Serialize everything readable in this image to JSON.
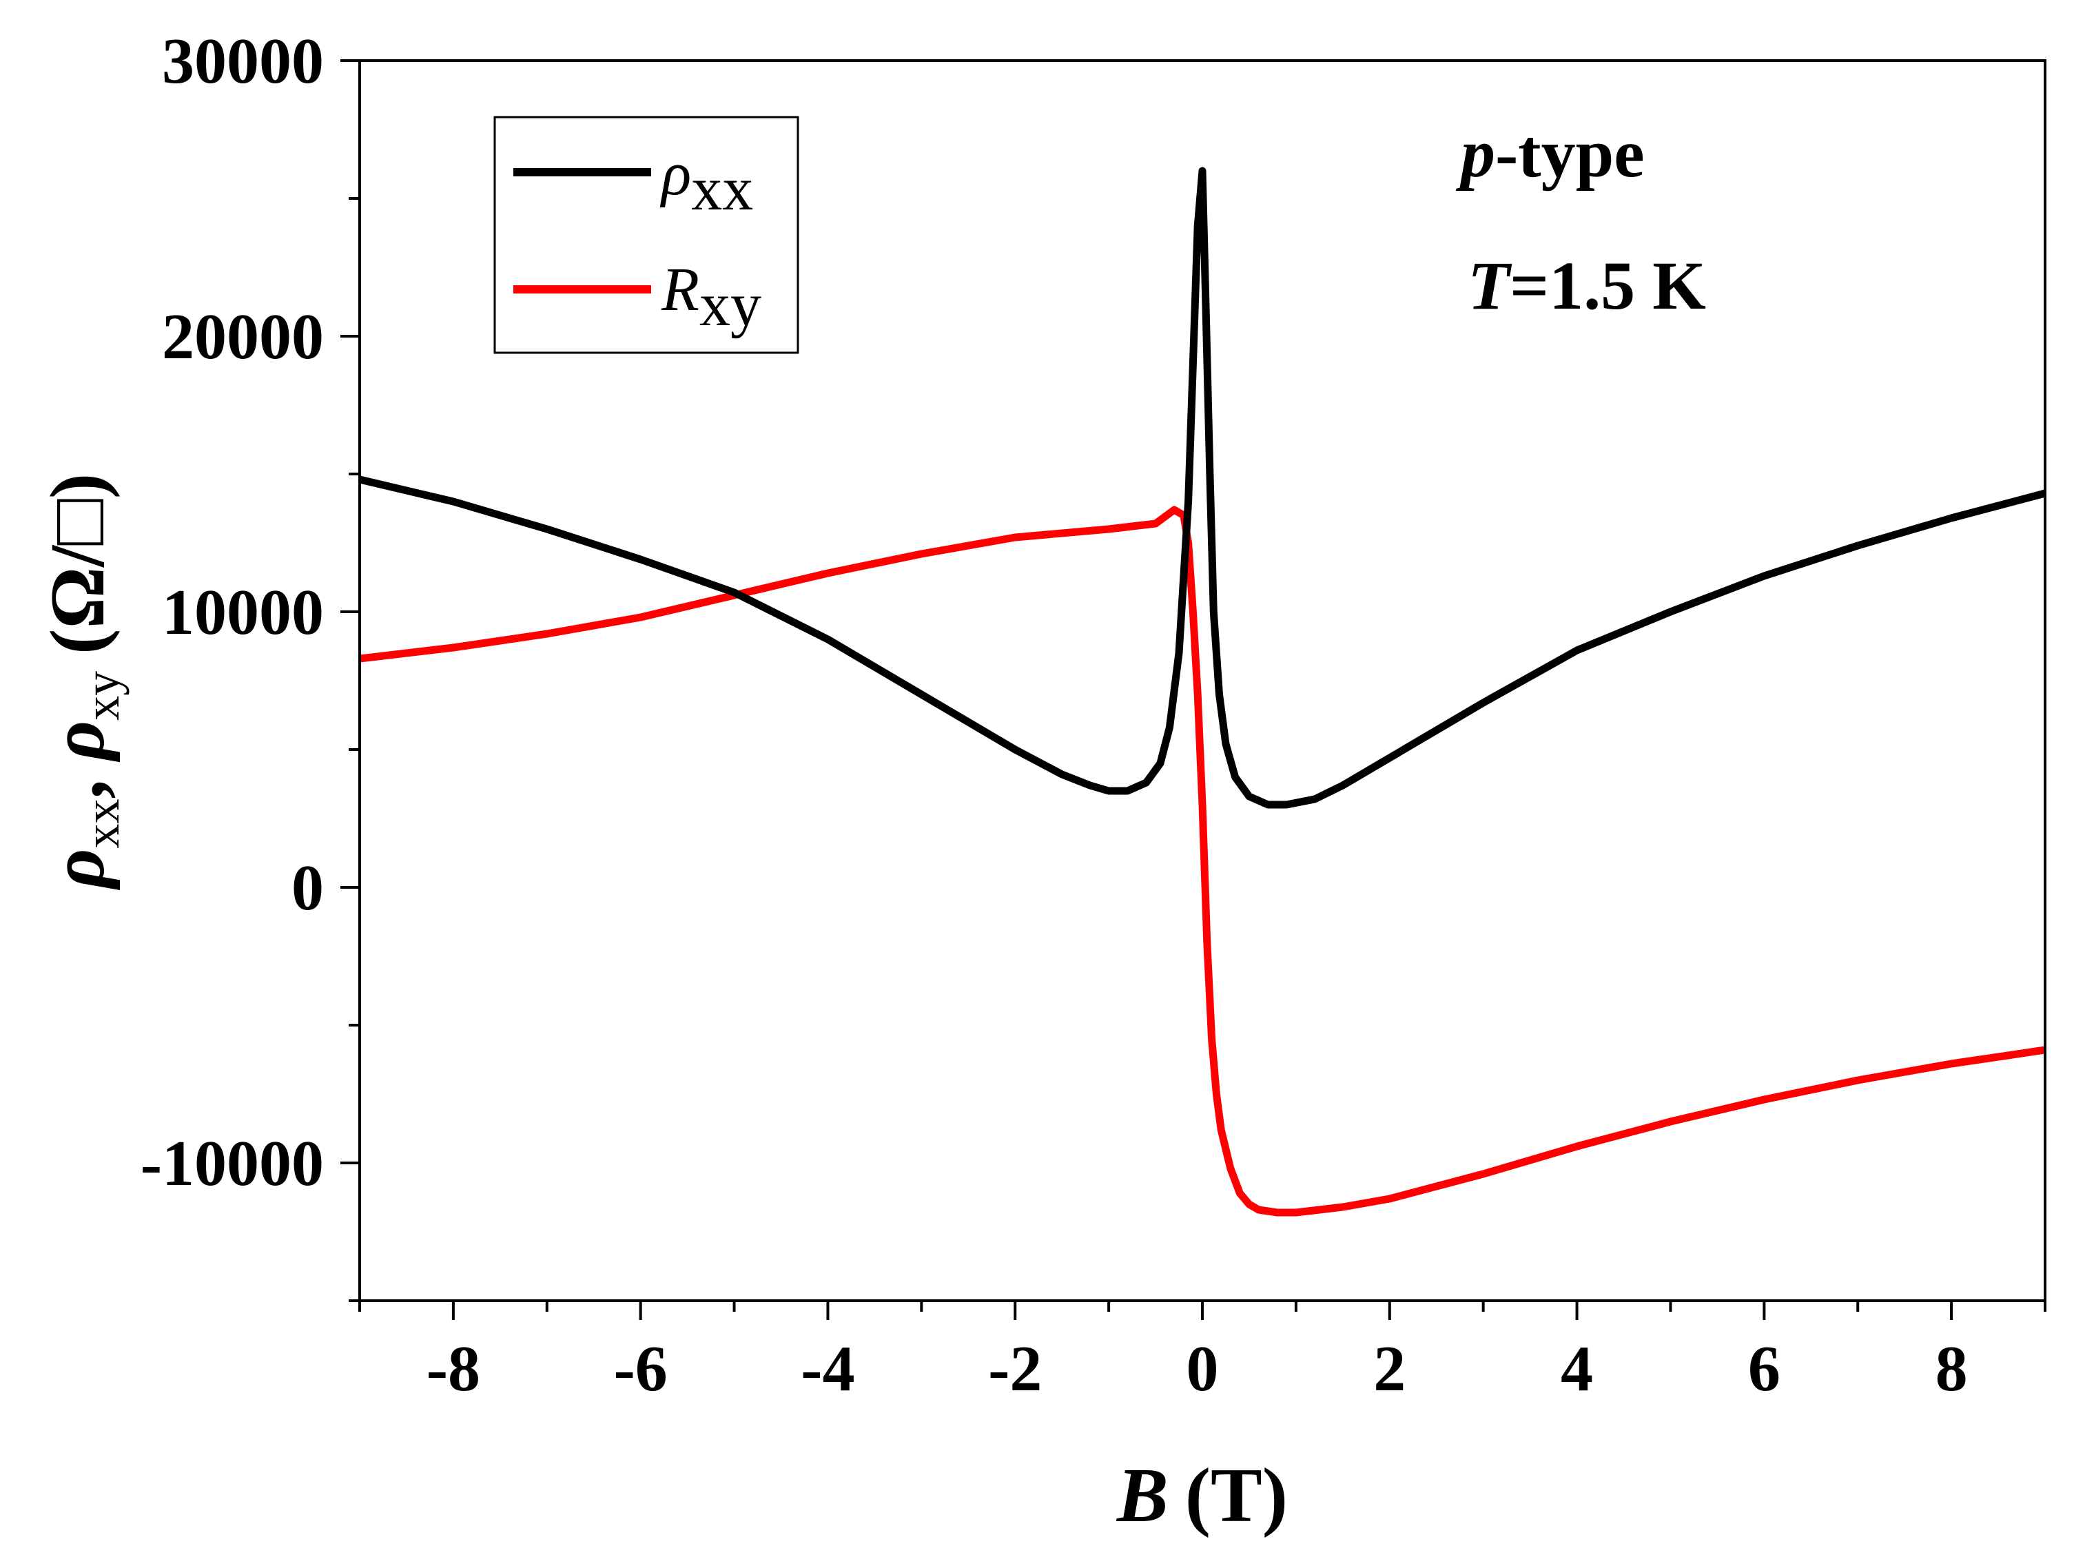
{
  "chart_data": {
    "type": "line",
    "title": "",
    "xlabel": "B (T)",
    "xlabel_symbol": "B",
    "xlabel_unit": "(T)",
    "ylabel": "ρxx, ρxy (Ω/□)",
    "ylabel_parts": {
      "rho1": "ρ",
      "sub1": "xx",
      "sep": ", ",
      "rho2": "ρ",
      "sub2": "xy",
      "unit": "(Ω/□)"
    },
    "xlim": [
      -9,
      9
    ],
    "ylim": [
      -15000,
      30000
    ],
    "xticks": [
      -8,
      -6,
      -4,
      -2,
      0,
      2,
      4,
      6,
      8
    ],
    "xtick_labels": [
      "-8",
      "-6",
      "-4",
      "-2",
      "0",
      "2",
      "4",
      "6",
      "8"
    ],
    "yticks": [
      -10000,
      0,
      10000,
      20000,
      30000
    ],
    "ytick_labels": [
      "-10000",
      "0",
      "10000",
      "20000",
      "30000"
    ],
    "grid": false,
    "legend_position": "top-left",
    "annotations": [
      {
        "symbol": "p",
        "text": "-type"
      },
      {
        "symbol": "T",
        "text": "=1.5 K"
      }
    ],
    "series": [
      {
        "name": "ρxx",
        "legend_symbol": "ρ",
        "legend_sub": "xx",
        "color": "#000000",
        "x": [
          -9,
          -8,
          -7,
          -6,
          -5,
          -4,
          -3,
          -2,
          -1.5,
          -1.2,
          -1.0,
          -0.8,
          -0.6,
          -0.45,
          -0.35,
          -0.25,
          -0.15,
          -0.1,
          -0.05,
          0,
          0.03,
          0.08,
          0.12,
          0.18,
          0.25,
          0.35,
          0.5,
          0.7,
          0.9,
          1.2,
          1.5,
          2,
          3,
          4,
          5,
          6,
          7,
          8,
          9
        ],
        "y": [
          14800,
          14000,
          13000,
          11900,
          10700,
          9000,
          7000,
          5000,
          4100,
          3700,
          3500,
          3500,
          3800,
          4500,
          5800,
          8500,
          14000,
          19000,
          24000,
          26000,
          22000,
          15000,
          10000,
          7000,
          5200,
          4000,
          3300,
          3000,
          3000,
          3200,
          3700,
          4700,
          6700,
          8600,
          10000,
          11300,
          12400,
          13400,
          14300
        ]
      },
      {
        "name": "Rxy",
        "legend_symbol": "R",
        "legend_sub": "xy",
        "color": "#ff0000",
        "x": [
          -9,
          -8,
          -7,
          -6,
          -5,
          -4,
          -3,
          -2,
          -1,
          -0.5,
          -0.3,
          -0.2,
          -0.15,
          -0.1,
          -0.05,
          0,
          0.05,
          0.1,
          0.15,
          0.2,
          0.3,
          0.4,
          0.5,
          0.6,
          0.8,
          1,
          1.5,
          2,
          3,
          4,
          5,
          6,
          7,
          8,
          9
        ],
        "y": [
          8300,
          8700,
          9200,
          9800,
          10600,
          11400,
          12100,
          12700,
          13000,
          13200,
          13700,
          13500,
          12500,
          10000,
          7000,
          3000,
          -2000,
          -5500,
          -7500,
          -8800,
          -10200,
          -11100,
          -11500,
          -11700,
          -11800,
          -11800,
          -11600,
          -11300,
          -10400,
          -9400,
          -8500,
          -7700,
          -7000,
          -6400,
          -5900
        ]
      }
    ]
  }
}
